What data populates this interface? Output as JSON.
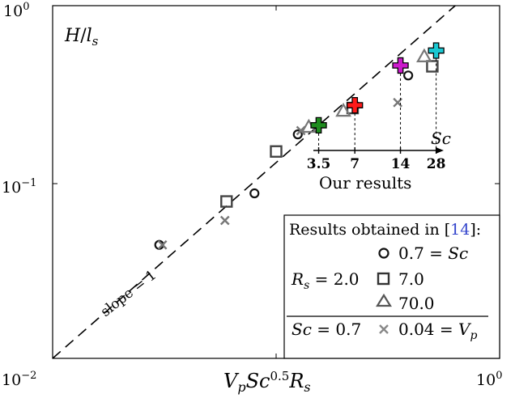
{
  "chart_data": {
    "type": "scatter",
    "title": "",
    "ylabel_corner": "H/l_s",
    "xlabel": "V_p Sc^0.5 R_s",
    "x_scale": "log",
    "y_scale": "log",
    "xlim": [
      0.01,
      1
    ],
    "ylim": [
      0.0158,
      1
    ],
    "x_tick_labels": [
      "10^-2",
      "10^0"
    ],
    "y_tick_labels": [
      "10^0",
      "10^-1"
    ],
    "reference_line": {
      "label": "slope = 1",
      "style": "dashed",
      "slope": 1,
      "points": [
        [
          0.01,
          0.0158
        ],
        [
          1,
          1.58
        ]
      ]
    },
    "literature_series": [
      {
        "marker": "circle",
        "color": "#111111",
        "points": [
          [
            0.03,
            0.06
          ],
          [
            0.08,
            0.11
          ],
          [
            0.125,
            0.22
          ],
          [
            0.39,
            0.44
          ]
        ]
      },
      {
        "marker": "square",
        "color": "#444444",
        "points": [
          [
            0.06,
            0.1
          ],
          [
            0.1,
            0.18
          ],
          [
            0.22,
            0.3
          ],
          [
            0.5,
            0.49
          ]
        ]
      },
      {
        "marker": "triangle",
        "color": "#777777",
        "points": [
          [
            0.14,
            0.24
          ],
          [
            0.2,
            0.29
          ],
          [
            0.46,
            0.55
          ]
        ]
      },
      {
        "marker": "x",
        "color": "#777777",
        "points": [
          [
            0.031,
            0.06
          ],
          [
            0.059,
            0.08
          ],
          [
            0.129,
            0.23
          ],
          [
            0.35,
            0.32
          ]
        ]
      }
    ],
    "our_results": [
      {
        "Sc": "3.5",
        "x": 0.155,
        "y": 0.245,
        "color": "#1e8c1e"
      },
      {
        "Sc": "7",
        "x": 0.225,
        "y": 0.31,
        "color": "#ff1a1a"
      },
      {
        "Sc": "14",
        "x": 0.36,
        "y": 0.495,
        "color": "#cc1acc"
      },
      {
        "Sc": "28",
        "x": 0.52,
        "y": 0.59,
        "color": "#1ac8d2"
      }
    ],
    "inset": {
      "axis_label": "Sc",
      "tick_labels": [
        "3.5",
        "7",
        "14",
        "28"
      ],
      "caption": "Our results"
    },
    "legend": {
      "placement": "bottom-right",
      "header": "Results obtained in [14]:",
      "ref_number": "14",
      "rows": [
        {
          "marker": "circle",
          "group": "",
          "text": "0.7 = Sc"
        },
        {
          "marker": "square",
          "group": "R_s = 2.0",
          "text": "7.0"
        },
        {
          "marker": "triangle",
          "group": "",
          "text": "70.0"
        },
        {
          "marker": "x",
          "group": "Sc = 0.7",
          "text": "0.04 = V_p"
        }
      ]
    }
  }
}
